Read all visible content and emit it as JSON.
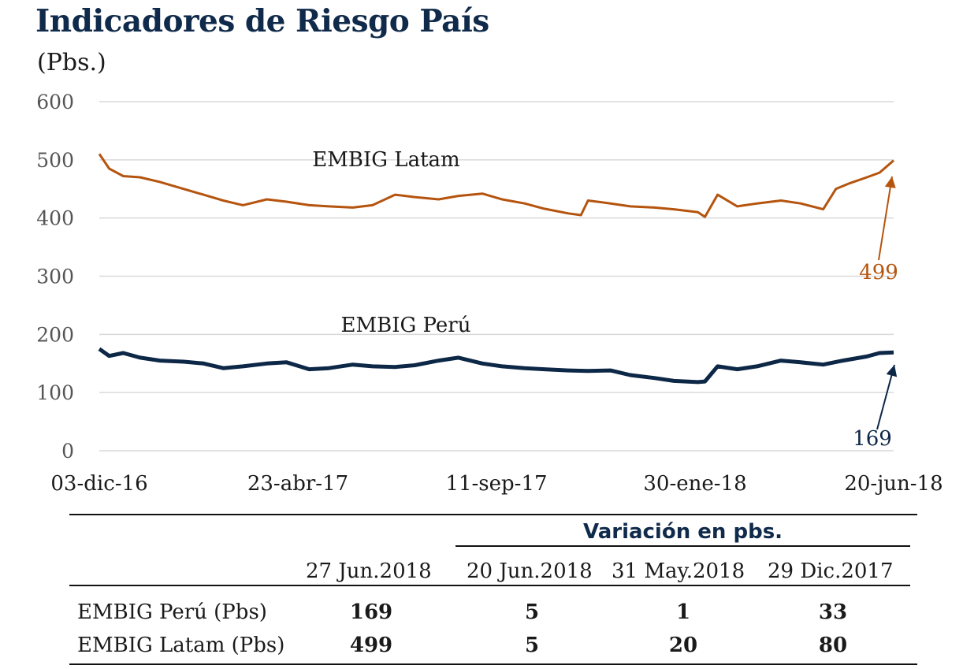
{
  "title": "Indicadores de Riesgo País",
  "subtitle": "(Pbs.)",
  "chart_data": {
    "type": "line",
    "ylim": [
      0,
      600
    ],
    "yticks": [
      "0",
      "100",
      "200",
      "300",
      "400",
      "500",
      "600"
    ],
    "xticks": [
      "03-dic-16",
      "23-abr-17",
      "11-sep-17",
      "30-ene-18",
      "20-jun-18"
    ],
    "grid": true,
    "series": [
      {
        "name": "EMBIG Latam",
        "color": "#b5540e",
        "end_label": "499",
        "x": [
          "2016-12-03",
          "2016-12-10",
          "2016-12-20",
          "2017-01-01",
          "2017-01-15",
          "2017-02-01",
          "2017-02-15",
          "2017-03-01",
          "2017-03-15",
          "2017-04-01",
          "2017-04-15",
          "2017-05-01",
          "2017-05-15",
          "2017-06-01",
          "2017-06-15",
          "2017-07-01",
          "2017-07-15",
          "2017-08-01",
          "2017-08-15",
          "2017-09-01",
          "2017-09-15",
          "2017-10-01",
          "2017-10-15",
          "2017-11-01",
          "2017-11-10",
          "2017-11-15",
          "2017-12-01",
          "2017-12-15",
          "2018-01-01",
          "2018-01-15",
          "2018-02-01",
          "2018-02-06",
          "2018-02-15",
          "2018-03-01",
          "2018-03-15",
          "2018-04-01",
          "2018-04-15",
          "2018-05-01",
          "2018-05-10",
          "2018-05-20",
          "2018-06-01",
          "2018-06-10",
          "2018-06-20"
        ],
        "values": [
          510,
          485,
          472,
          470,
          462,
          450,
          440,
          430,
          422,
          432,
          428,
          422,
          420,
          418,
          422,
          440,
          436,
          432,
          438,
          442,
          432,
          425,
          416,
          408,
          405,
          430,
          425,
          420,
          418,
          415,
          410,
          402,
          440,
          420,
          425,
          430,
          425,
          415,
          450,
          460,
          470,
          478,
          499
        ]
      },
      {
        "name": "EMBIG Perú",
        "color": "#0d2747",
        "end_label": "169",
        "x": [
          "2016-12-03",
          "2016-12-10",
          "2016-12-20",
          "2017-01-01",
          "2017-01-15",
          "2017-02-01",
          "2017-02-15",
          "2017-03-01",
          "2017-03-15",
          "2017-04-01",
          "2017-04-15",
          "2017-05-01",
          "2017-05-15",
          "2017-06-01",
          "2017-06-15",
          "2017-07-01",
          "2017-07-15",
          "2017-08-01",
          "2017-08-15",
          "2017-09-01",
          "2017-09-15",
          "2017-10-01",
          "2017-10-15",
          "2017-11-01",
          "2017-11-15",
          "2017-12-01",
          "2017-12-15",
          "2018-01-01",
          "2018-01-15",
          "2018-02-01",
          "2018-02-06",
          "2018-02-15",
          "2018-03-01",
          "2018-03-15",
          "2018-04-01",
          "2018-04-15",
          "2018-05-01",
          "2018-05-15",
          "2018-06-01",
          "2018-06-10",
          "2018-06-20"
        ],
        "values": [
          175,
          163,
          168,
          160,
          155,
          153,
          150,
          142,
          145,
          150,
          152,
          140,
          142,
          148,
          145,
          144,
          147,
          155,
          160,
          150,
          145,
          142,
          140,
          138,
          137,
          138,
          130,
          125,
          120,
          118,
          119,
          145,
          140,
          145,
          155,
          152,
          148,
          155,
          162,
          168,
          169
        ]
      }
    ],
    "annotations": [
      {
        "text": "EMBIG Latam",
        "series": "EMBIG Latam"
      },
      {
        "text": "EMBIG Perú",
        "series": "EMBIG Perú"
      }
    ]
  },
  "table": {
    "group_header": "Variación en pbs.",
    "columns": [
      "27 Jun.2018",
      "20 Jun.2018",
      "31 May.2018",
      "29 Dic.2017"
    ],
    "rows": [
      {
        "label": "EMBIG Perú (Pbs)",
        "values": [
          "169",
          "5",
          "1",
          "33"
        ]
      },
      {
        "label": "EMBIG Latam (Pbs)",
        "values": [
          "499",
          "5",
          "20",
          "80"
        ]
      }
    ]
  }
}
